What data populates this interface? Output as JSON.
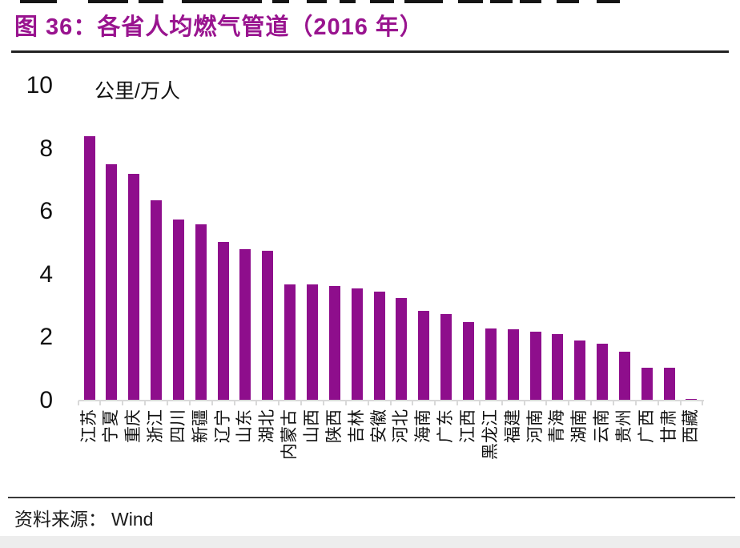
{
  "figure": {
    "title": "图 36：各省人均燃气管道（2016 年）",
    "source_label": "资料来源：",
    "source_value": "Wind"
  },
  "chart_data": {
    "type": "bar",
    "title": "各省人均燃气管道（2016 年）",
    "unit_label": "公里/万人",
    "xlabel": "",
    "ylabel": "公里/万人",
    "ylim": [
      0,
      10
    ],
    "yticks": [
      0,
      2,
      4,
      6,
      8,
      10
    ],
    "grid": false,
    "legend_position": "none",
    "bar_color": "#8E0E8C",
    "axis_color": "#D9D9D9",
    "categories": [
      "江苏",
      "宁夏",
      "重庆",
      "浙江",
      "四川",
      "新疆",
      "辽宁",
      "山东",
      "湖北",
      "内蒙古",
      "山西",
      "陕西",
      "吉林",
      "安徽",
      "河北",
      "海南",
      "广东",
      "江西",
      "黑龙江",
      "福建",
      "河南",
      "青海",
      "湖南",
      "云南",
      "贵州",
      "广西",
      "甘肃",
      "西藏"
    ],
    "values": [
      8.4,
      7.5,
      7.2,
      6.35,
      5.75,
      5.6,
      5.05,
      4.8,
      4.75,
      3.7,
      3.7,
      3.65,
      3.55,
      3.45,
      3.25,
      2.85,
      2.75,
      2.5,
      2.3,
      2.27,
      2.2,
      2.1,
      1.9,
      1.8,
      1.55,
      1.05,
      1.05,
      0.05
    ]
  }
}
